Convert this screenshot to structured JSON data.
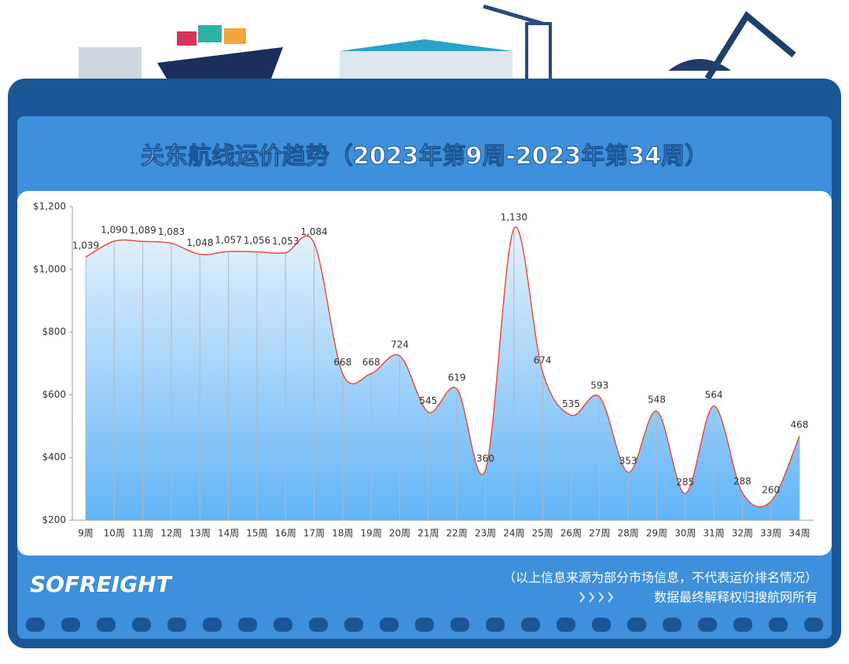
{
  "chart_data": {
    "type": "line",
    "title": "关东航线运价趋势（2023年第9周-2023年第34周）",
    "categories": [
      "9周",
      "10周",
      "11周",
      "12周",
      "13周",
      "14周",
      "15周",
      "16周",
      "17周",
      "18周",
      "19周",
      "20周",
      "21周",
      "22周",
      "23周",
      "24周",
      "25周",
      "26周",
      "27周",
      "28周",
      "29周",
      "30周",
      "31周",
      "32周",
      "33周",
      "34周"
    ],
    "values": [
      1039,
      1090,
      1089,
      1083,
      1048,
      1057,
      1056,
      1053,
      1084,
      668,
      668,
      724,
      545,
      619,
      360,
      1130,
      674,
      535,
      593,
      353,
      548,
      285,
      564,
      288,
      260,
      468
    ],
    "value_labels": [
      "1,039",
      "1,090",
      "1,089",
      "1,083",
      "1,048",
      "1,057",
      "1,056",
      "1,053",
      "1,084",
      "668",
      "668",
      "724",
      "545",
      "619",
      "360",
      "1,130",
      "674",
      "535",
      "593",
      "353",
      "548",
      "285",
      "564",
      "288",
      "260",
      "468"
    ],
    "color": "#e8503a",
    "ylim": [
      200,
      1200
    ],
    "yticks": [
      {
        "value": 200,
        "label": "$200"
      },
      {
        "value": 400,
        "label": "$400"
      },
      {
        "value": 600,
        "label": "$600"
      },
      {
        "value": 800,
        "label": "$800"
      },
      {
        "value": 1000,
        "label": "$1,000"
      },
      {
        "value": 1200,
        "label": "$1,200"
      }
    ],
    "grid": false
  },
  "brand": "SOFREIGHT",
  "notes": [
    "（以上信息来源为部分市场信息，不代表运价排名情况）",
    "数据最终解释权归搜航网所有"
  ]
}
